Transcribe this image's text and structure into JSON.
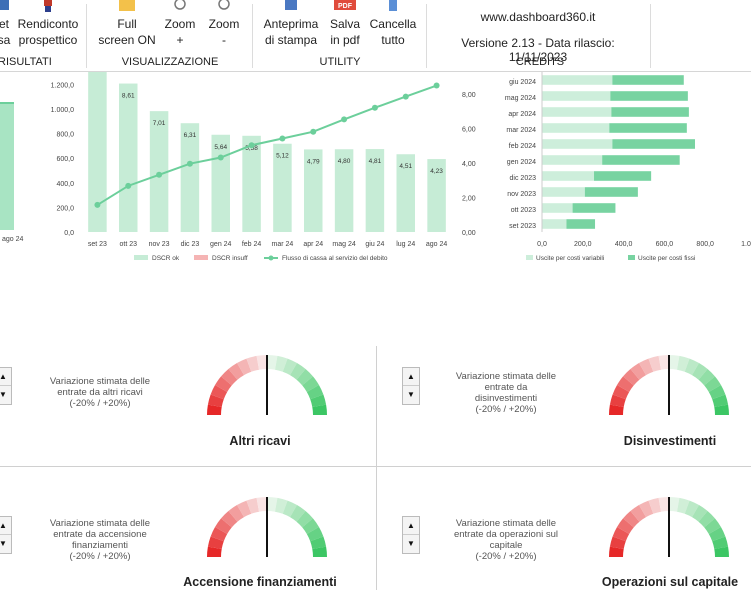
{
  "ribbon": {
    "btn_left1": "et",
    "btn_left1b": "sa",
    "btn_rendiconto": "Rendiconto",
    "btn_rendiconto_b": "prospettico",
    "btn_full": "Full",
    "btn_full_b": "screen ON",
    "btn_zoomin": "Zoom",
    "btn_zoomin_b": "+",
    "btn_zoomout": "Zoom",
    "btn_zoomout_b": "-",
    "btn_anteprima": "Anteprima",
    "btn_anteprima_b": "di stampa",
    "btn_pdf": "Salva",
    "btn_pdf_b": "in pdf",
    "btn_cancella": "Cancella",
    "btn_cancella_b": "tutto",
    "group_risultati": "RISULTATI",
    "group_visualizzazione": "VISUALIZZAZIONE",
    "group_utility": "UTILITY",
    "group_credits": "CREDITS",
    "credits_site": "www.dashboard360.it",
    "credits_version": "Versione 2.13 - Data rilascio: 11/11/2023",
    "pdf_badge": "PDF"
  },
  "left_chart": {
    "tick_label": "ago 24"
  },
  "chart_data": [
    {
      "type": "bar",
      "categories": [
        "set 23",
        "ott 23",
        "nov 23",
        "dic 23",
        "gen 24",
        "feb 24",
        "mar 24",
        "apr 24",
        "mag 24",
        "giu 24",
        "lug 24",
        "ago 24"
      ],
      "series": [
        {
          "name": "DSCR ok",
          "values": [
            12.5,
            8.61,
            7.01,
            6.31,
            5.64,
            5.58,
            5.12,
            4.79,
            4.8,
            4.81,
            4.51,
            4.23
          ]
        },
        {
          "name": "DSCR insuff",
          "values": [
            0,
            0,
            0,
            0,
            0,
            0,
            0,
            0,
            0,
            0,
            0,
            0
          ]
        },
        {
          "name": "Flusso di cassa al servizio del debito",
          "values": [
            220,
            375,
            465,
            555,
            605,
            705,
            760,
            815,
            915,
            1010,
            1100,
            1190
          ]
        }
      ],
      "bar_labels": [
        "",
        "8,61",
        "7,01",
        "6,31",
        "5,64",
        "5,58",
        "5,12",
        "4,79",
        "4,80",
        "4,81",
        "4,51",
        "4,23"
      ],
      "left_ticks": [
        "0,0",
        "200,0",
        "400,0",
        "600,0",
        "800,0",
        "1.000,0",
        "1.200,0"
      ],
      "right_ticks": [
        "0,00",
        "2,00",
        "4,00",
        "6,00",
        "8,00"
      ],
      "ylim": [
        0,
        1300
      ],
      "y2lim": [
        0,
        9.28
      ]
    },
    {
      "type": "bar",
      "orientation": "horizontal",
      "categories": [
        "giu 2024",
        "mag 2024",
        "apr 2024",
        "mar 2024",
        "feb 2024",
        "gen 2024",
        "dic 2023",
        "nov 2023",
        "ott 2023",
        "set 2023"
      ],
      "series": [
        {
          "name": "Uscite per costi variabili",
          "values": [
            345,
            335,
            340,
            330,
            345,
            295,
            255,
            210,
            150,
            120
          ]
        },
        {
          "name": "Uscite per costi fissi",
          "values": [
            350,
            380,
            380,
            380,
            405,
            380,
            280,
            260,
            210,
            140
          ]
        }
      ],
      "x_ticks": [
        "0,0",
        "200,0",
        "400,0",
        "600,0",
        "800,0",
        "1.0"
      ],
      "xlim": [
        0,
        1000
      ]
    }
  ],
  "gauges": [
    {
      "text1": "Variazione stimata delle",
      "text2": "entrate da altri ricavi",
      "text3": "(-20% / +20%)",
      "text4": "",
      "title": "Altri ricavi",
      "value": 0
    },
    {
      "text1": "Variazione stimata delle",
      "text2": "entrate da",
      "text3": "disinvestimenti",
      "text4": "(-20% / +20%)",
      "title": "Disinvestimenti",
      "value": 0
    },
    {
      "text1": "Variazione stimata delle",
      "text2": "entrate da accensione",
      "text3": "finanziamenti",
      "text4": "(-20% / +20%)",
      "title": "Accensione finanziamenti",
      "value": 0
    },
    {
      "text1": "Variazione stimata delle",
      "text2": "entrate da operazioni sul",
      "text3": "capitale",
      "text4": "(-20% / +20%)",
      "title": "Operazioni sul capitale",
      "value": 0
    }
  ],
  "spinner": {
    "up": "▲",
    "down": "▼"
  },
  "colors": {
    "bar_ok": "#c6ecd6",
    "bar_insuff": "#f5b4b4",
    "line": "#6ccf9b",
    "fixed": "#78d3a1",
    "variable": "#cdeedb",
    "left_area": "#a8e4c3"
  }
}
